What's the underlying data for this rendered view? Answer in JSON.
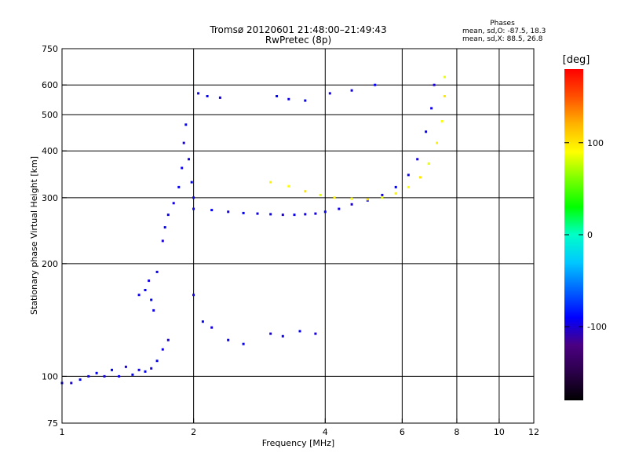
{
  "chart_data": {
    "type": "scatter",
    "title": "Tromsø 20120601 21:48:00–21:49:43",
    "subtitle": "RwPretec (8p)",
    "stats": {
      "heading": "Phases",
      "line1": "mean, sd,O: -87.5, 18.3",
      "line2": "mean, sd,X:  88.5, 26.8"
    },
    "xlabel": "Frequency [MHz]",
    "ylabel": "Stationary phase Virtual Height [km]",
    "x_scale": "log",
    "y_scale": "log",
    "xlim": [
      1,
      12
    ],
    "ylim": [
      75,
      750
    ],
    "x_ticks": [
      1,
      2,
      4,
      6,
      8,
      10,
      12
    ],
    "y_ticks": [
      75,
      100,
      200,
      300,
      400,
      500,
      600,
      750
    ],
    "x_major_grid": [
      2,
      4,
      6,
      8,
      10
    ],
    "y_major_grid": [
      100,
      200,
      300,
      400,
      500,
      600
    ],
    "grid": true,
    "colorbar": {
      "label": "[deg]",
      "min": -180,
      "max": 180,
      "ticks": [
        -100,
        0,
        100
      ],
      "colormap": "rainbow",
      "colors": [
        "#000000",
        "#2a0048",
        "#4b0082",
        "#0000ff",
        "#0064ff",
        "#00c8ff",
        "#00ffc8",
        "#00ff00",
        "#78ff00",
        "#ffff00",
        "#ffb400",
        "#ff5000",
        "#ff0000"
      ]
    },
    "series": [
      {
        "values": [
          [
            1.0,
            96,
            -95
          ],
          [
            1.05,
            96,
            -100
          ],
          [
            1.1,
            98,
            -90
          ],
          [
            1.15,
            100,
            -95
          ],
          [
            1.2,
            102,
            -92
          ],
          [
            1.25,
            100,
            -98
          ],
          [
            1.3,
            104,
            -90
          ],
          [
            1.35,
            100,
            -95
          ],
          [
            1.4,
            106,
            -100
          ],
          [
            1.45,
            101,
            -92
          ],
          [
            1.5,
            104,
            -96
          ],
          [
            1.55,
            103,
            -90
          ],
          [
            1.6,
            105,
            -98
          ],
          [
            1.65,
            110,
            -92
          ],
          [
            1.7,
            118,
            -95
          ],
          [
            1.75,
            125,
            -100
          ]
        ]
      },
      {
        "values": [
          [
            1.5,
            165,
            -95
          ],
          [
            1.55,
            170,
            -92
          ],
          [
            1.58,
            180,
            -98
          ],
          [
            1.6,
            160,
            -90
          ],
          [
            1.62,
            150,
            -96
          ],
          [
            1.65,
            190,
            -95
          ],
          [
            1.7,
            230,
            -100
          ],
          [
            1.72,
            250,
            -92
          ],
          [
            1.75,
            270,
            -95
          ],
          [
            1.8,
            290,
            -98
          ],
          [
            1.85,
            320,
            -92
          ],
          [
            1.88,
            360,
            -95
          ],
          [
            1.9,
            420,
            -100
          ],
          [
            1.92,
            470,
            -92
          ],
          [
            1.95,
            380,
            -96
          ],
          [
            1.98,
            330,
            -90
          ],
          [
            2.0,
            300,
            -95
          ]
        ]
      },
      {
        "values": [
          [
            2.0,
            280,
            -95
          ],
          [
            2.2,
            278,
            -92
          ],
          [
            2.4,
            275,
            -98
          ],
          [
            2.6,
            273,
            -90
          ],
          [
            2.8,
            272,
            -96
          ],
          [
            3.0,
            271,
            -95
          ],
          [
            3.2,
            270,
            -100
          ],
          [
            3.4,
            270,
            -92
          ],
          [
            3.6,
            271,
            -95
          ],
          [
            3.8,
            272,
            -98
          ],
          [
            4.0,
            275,
            -92
          ],
          [
            4.3,
            280,
            -95
          ],
          [
            4.6,
            288,
            -100
          ],
          [
            5.0,
            295,
            -92
          ],
          [
            5.4,
            305,
            -96
          ],
          [
            5.8,
            320,
            -90
          ],
          [
            6.2,
            345,
            -95
          ],
          [
            6.5,
            380,
            -98
          ],
          [
            6.8,
            450,
            -92
          ],
          [
            7.0,
            520,
            -95
          ],
          [
            7.1,
            600,
            -100
          ]
        ]
      },
      {
        "values": [
          [
            3.0,
            330,
            95
          ],
          [
            3.3,
            322,
            90
          ],
          [
            3.6,
            312,
            100
          ],
          [
            3.9,
            305,
            85
          ],
          [
            4.2,
            300,
            95
          ],
          [
            4.6,
            298,
            90
          ],
          [
            5.0,
            297,
            100
          ],
          [
            5.4,
            300,
            85
          ],
          [
            5.8,
            308,
            95
          ],
          [
            6.2,
            320,
            90
          ],
          [
            6.6,
            340,
            100
          ],
          [
            6.9,
            370,
            85
          ],
          [
            7.2,
            420,
            95
          ],
          [
            7.4,
            480,
            90
          ],
          [
            7.5,
            560,
            100
          ],
          [
            7.5,
            630,
            85
          ]
        ]
      },
      {
        "values": [
          [
            2.05,
            570,
            -95
          ],
          [
            2.15,
            560,
            -92
          ],
          [
            2.3,
            555,
            -98
          ],
          [
            3.1,
            560,
            -90
          ],
          [
            3.3,
            550,
            -95
          ],
          [
            3.6,
            545,
            -92
          ],
          [
            4.1,
            570,
            -98
          ],
          [
            4.6,
            580,
            -95
          ],
          [
            5.2,
            600,
            -92
          ]
        ]
      },
      {
        "values": [
          [
            2.0,
            165,
            -95
          ],
          [
            2.1,
            140,
            -92
          ],
          [
            2.2,
            135,
            -98
          ],
          [
            2.4,
            125,
            -95
          ],
          [
            2.6,
            122,
            -92
          ],
          [
            3.0,
            130,
            -98
          ],
          [
            3.2,
            128,
            -95
          ],
          [
            3.5,
            132,
            -92
          ],
          [
            3.8,
            130,
            -98
          ]
        ]
      }
    ]
  }
}
